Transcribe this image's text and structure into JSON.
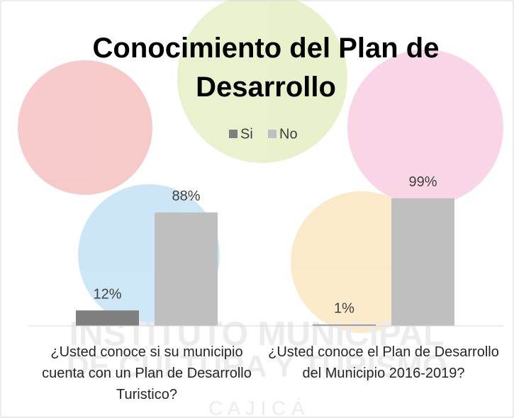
{
  "chart_data": {
    "type": "bar",
    "title": "Conocimiento del Plan de Desarrollo",
    "categories": [
      "¿Usted conoce si su municipio cuenta con un Plan de Desarrollo Turistico?",
      "¿Usted conoce el Plan de Desarrollo del Municipio 2016-2019?"
    ],
    "series": [
      {
        "name": "Si",
        "color": "#7f7f7f",
        "values": [
          12,
          1
        ],
        "value_labels": [
          "12%",
          "1%"
        ]
      },
      {
        "name": "No",
        "color": "#bfbfbf",
        "values": [
          88,
          99
        ],
        "value_labels": [
          "88%",
          "99%"
        ]
      }
    ],
    "ylim": [
      0,
      100
    ],
    "legend": "top"
  },
  "watermark": [
    "INSTITUTO MUNICIPAL",
    "DE CULTURA Y TURISMO",
    "C A J I C Á"
  ]
}
